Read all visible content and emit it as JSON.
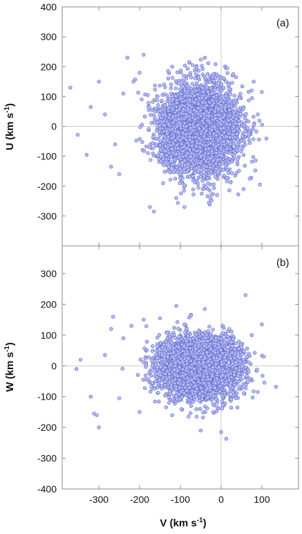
{
  "colors": {
    "marker_fill": "#b8bdf3",
    "marker_stroke": "#5a63c8",
    "frame": "#888888",
    "zero_line": "#c8c8c8"
  },
  "chart_data": [
    {
      "type": "scatter",
      "panel_label": "(a)",
      "xlabel": "",
      "ylabel_main": "U (km s",
      "ylabel_sup": "-1",
      "ylabel_tail": ")",
      "xlim": [
        -390,
        190
      ],
      "ylim": [
        -400,
        400
      ],
      "x_ticks": [
        -300,
        -200,
        -100,
        0,
        100
      ],
      "y_ticks": [
        -300,
        -200,
        -100,
        0,
        100,
        200,
        300,
        400
      ],
      "y_tick_labels": [
        "-300",
        "-200",
        "-100",
        "0",
        "100",
        "200",
        "300",
        "400"
      ],
      "zero_lines": true,
      "cloud": {
        "x_mean": -55,
        "x_sd": 48,
        "y_mean": -10,
        "y_sd": 72,
        "n": 4200
      },
      "outliers": [
        [
          -370,
          130
        ],
        [
          -352,
          -28
        ],
        [
          -330,
          -95
        ],
        [
          -320,
          65
        ],
        [
          -300,
          150
        ],
        [
          -285,
          40
        ],
        [
          -270,
          -135
        ],
        [
          -250,
          -160
        ],
        [
          -240,
          110
        ],
        [
          -230,
          230
        ],
        [
          -215,
          150
        ],
        [
          -200,
          180
        ],
        [
          -190,
          240
        ],
        [
          -180,
          105
        ],
        [
          -175,
          -270
        ],
        [
          -165,
          -285
        ],
        [
          -160,
          60
        ],
        [
          -140,
          140
        ],
        [
          -130,
          185
        ],
        [
          -120,
          200
        ],
        [
          -110,
          -240
        ],
        [
          -90,
          -270
        ],
        [
          -70,
          205
        ],
        [
          -60,
          200
        ],
        [
          -40,
          230
        ],
        [
          -30,
          -255
        ],
        [
          -10,
          -230
        ],
        [
          15,
          195
        ],
        [
          30,
          175
        ],
        [
          55,
          -210
        ],
        [
          70,
          -175
        ],
        [
          80,
          150
        ],
        [
          95,
          -195
        ],
        [
          100,
          115
        ],
        [
          90,
          40
        ],
        [
          -260,
          -60
        ]
      ]
    },
    {
      "type": "scatter",
      "panel_label": "(b)",
      "xlabel_main": "V (km s",
      "xlabel_sup": "-1",
      "xlabel_tail": ")",
      "ylabel_main": "W (km s",
      "ylabel_sup": "-1",
      "ylabel_tail": ")",
      "xlim": [
        -390,
        190
      ],
      "ylim": [
        -400,
        390
      ],
      "x_ticks": [
        -300,
        -200,
        -100,
        0,
        100
      ],
      "x_tick_labels": [
        "-300",
        "-200",
        "-100",
        "0",
        "100"
      ],
      "y_ticks": [
        -400,
        -300,
        -200,
        -100,
        0,
        100,
        200,
        300
      ],
      "y_tick_labels": [
        "-400",
        "-300",
        "-200",
        "-100",
        "0",
        "100",
        "200",
        "300"
      ],
      "zero_lines": true,
      "cloud": {
        "x_mean": -55,
        "x_sd": 48,
        "y_mean": -5,
        "y_sd": 48,
        "n": 4200
      },
      "outliers": [
        [
          -355,
          -10
        ],
        [
          -345,
          20
        ],
        [
          -320,
          -100
        ],
        [
          -312,
          -155
        ],
        [
          -305,
          -160
        ],
        [
          -300,
          -200
        ],
        [
          -285,
          35
        ],
        [
          -270,
          120
        ],
        [
          -265,
          160
        ],
        [
          -250,
          -105
        ],
        [
          -240,
          90
        ],
        [
          -220,
          130
        ],
        [
          -200,
          -150
        ],
        [
          -190,
          150
        ],
        [
          -150,
          155
        ],
        [
          -120,
          -160
        ],
        [
          -110,
          195
        ],
        [
          -90,
          135
        ],
        [
          -80,
          -165
        ],
        [
          -60,
          -165
        ],
        [
          -40,
          185
        ],
        [
          -20,
          -150
        ],
        [
          0,
          -215
        ],
        [
          -50,
          -210
        ],
        [
          20,
          120
        ],
        [
          40,
          -135
        ],
        [
          60,
          230
        ],
        [
          75,
          100
        ],
        [
          90,
          -85
        ],
        [
          100,
          135
        ],
        [
          105,
          30
        ]
      ]
    }
  ]
}
